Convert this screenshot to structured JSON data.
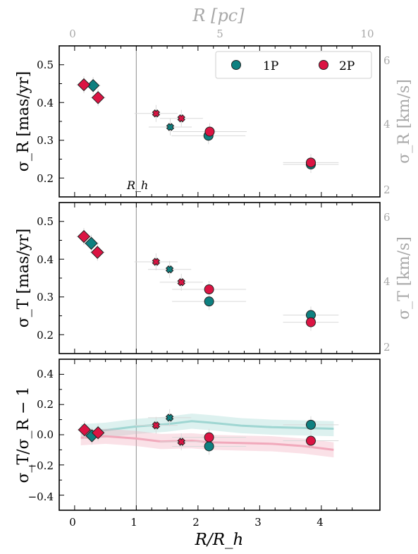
{
  "chart_data": [
    {
      "type": "scatter",
      "ylabel": "σ_R [mas/yr]",
      "ylabel_right": "σ_R [km/s]",
      "ylim": [
        0.15,
        0.55
      ],
      "yticks": [
        "0.2",
        "0.3",
        "0.4",
        "0.5"
      ],
      "yticks_right": [
        "2",
        "4",
        "6"
      ],
      "secondary_x_label": "R [pc]",
      "secondary_x_ticks": [
        "0",
        "5",
        "10"
      ],
      "vline_label": "R_h",
      "legend": {
        "placement": "top-right",
        "entries": [
          "1P",
          "2P"
        ]
      },
      "series": [
        {
          "name": "1P",
          "points": [
            {
              "x": 0.3,
              "y": 0.445,
              "marker": "diamond"
            },
            {
              "x": 1.55,
              "y": 0.335,
              "marker": "x"
            },
            {
              "x": 2.17,
              "y": 0.312,
              "marker": "circle"
            },
            {
              "x": 3.83,
              "y": 0.236,
              "marker": "circle"
            }
          ]
        },
        {
          "name": "2P",
          "points": [
            {
              "x": 0.15,
              "y": 0.447,
              "marker": "diamond"
            },
            {
              "x": 0.38,
              "y": 0.413,
              "marker": "diamond"
            },
            {
              "x": 1.32,
              "y": 0.371,
              "marker": "x"
            },
            {
              "x": 1.73,
              "y": 0.358,
              "marker": "x"
            },
            {
              "x": 2.19,
              "y": 0.323,
              "marker": "circle"
            },
            {
              "x": 3.83,
              "y": 0.241,
              "marker": "circle"
            }
          ]
        }
      ]
    },
    {
      "type": "scatter",
      "ylabel": "σ_T [mas/yr]",
      "ylabel_right": "σ_T [km/s]",
      "ylim": [
        0.15,
        0.55
      ],
      "yticks": [
        "0.2",
        "0.3",
        "0.4",
        "0.5"
      ],
      "yticks_right": [
        "2",
        "4",
        "6"
      ],
      "series": [
        {
          "name": "1P",
          "points": [
            {
              "x": 0.27,
              "y": 0.442,
              "marker": "diamond"
            },
            {
              "x": 1.54,
              "y": 0.373,
              "marker": "x"
            },
            {
              "x": 2.18,
              "y": 0.288,
              "marker": "circle"
            },
            {
              "x": 3.83,
              "y": 0.252,
              "marker": "circle"
            }
          ]
        },
        {
          "name": "2P",
          "points": [
            {
              "x": 0.15,
              "y": 0.46,
              "marker": "diamond"
            },
            {
              "x": 0.37,
              "y": 0.418,
              "marker": "diamond"
            },
            {
              "x": 1.32,
              "y": 0.393,
              "marker": "x"
            },
            {
              "x": 1.73,
              "y": 0.339,
              "marker": "x"
            },
            {
              "x": 2.18,
              "y": 0.32,
              "marker": "circle"
            },
            {
              "x": 3.83,
              "y": 0.233,
              "marker": "circle"
            }
          ]
        }
      ]
    },
    {
      "type": "scatter",
      "ylabel": "σ_T/σ_R − 1",
      "xlabel": "R/R_h",
      "xlim": [
        -0.25,
        4.95
      ],
      "xticks": [
        "0",
        "1",
        "2",
        "3",
        "4"
      ],
      "ylim": [
        -0.5,
        0.5
      ],
      "yticks": [
        "−0.4",
        "−0.2",
        "0.0",
        "0.2",
        "0.4"
      ],
      "series": [
        {
          "name": "1P",
          "points": [
            {
              "x": 0.28,
              "y": -0.007,
              "marker": "diamond"
            },
            {
              "x": 1.54,
              "y": 0.113,
              "marker": "x"
            },
            {
              "x": 2.18,
              "y": -0.077,
              "marker": "circle"
            },
            {
              "x": 3.83,
              "y": 0.066,
              "marker": "circle"
            }
          ]
        },
        {
          "name": "2P",
          "points": [
            {
              "x": 0.16,
              "y": 0.033,
              "marker": "diamond"
            },
            {
              "x": 0.38,
              "y": 0.013,
              "marker": "diamond"
            },
            {
              "x": 1.32,
              "y": 0.062,
              "marker": "x"
            },
            {
              "x": 1.73,
              "y": -0.047,
              "marker": "x"
            },
            {
              "x": 2.18,
              "y": -0.017,
              "marker": "circle"
            },
            {
              "x": 3.83,
              "y": -0.04,
              "marker": "circle"
            }
          ]
        }
      ],
      "trend_lines": [
        {
          "name": "1P",
          "x": [
            0.1,
            0.5,
            1.0,
            1.5,
            1.9,
            2.2,
            2.7,
            3.2,
            3.7,
            4.2
          ],
          "y": [
            0.02,
            0.03,
            0.055,
            0.07,
            0.09,
            0.08,
            0.06,
            0.05,
            0.045,
            0.04
          ],
          "band": 0.05
        },
        {
          "name": "2P",
          "x": [
            0.1,
            0.5,
            1.0,
            1.4,
            1.9,
            2.2,
            2.7,
            3.2,
            3.7,
            4.2
          ],
          "y": [
            -0.02,
            -0.01,
            -0.025,
            -0.045,
            -0.04,
            -0.05,
            -0.055,
            -0.06,
            -0.075,
            -0.1
          ],
          "band": 0.05
        }
      ]
    }
  ],
  "colors": {
    "1P": "#0e8080",
    "2P": "#db1443",
    "1P_band": "#9fd6d2",
    "2P_band": "#f1a9bb",
    "secondary": "#a8a8a8",
    "vline": "#a0a0a0"
  }
}
